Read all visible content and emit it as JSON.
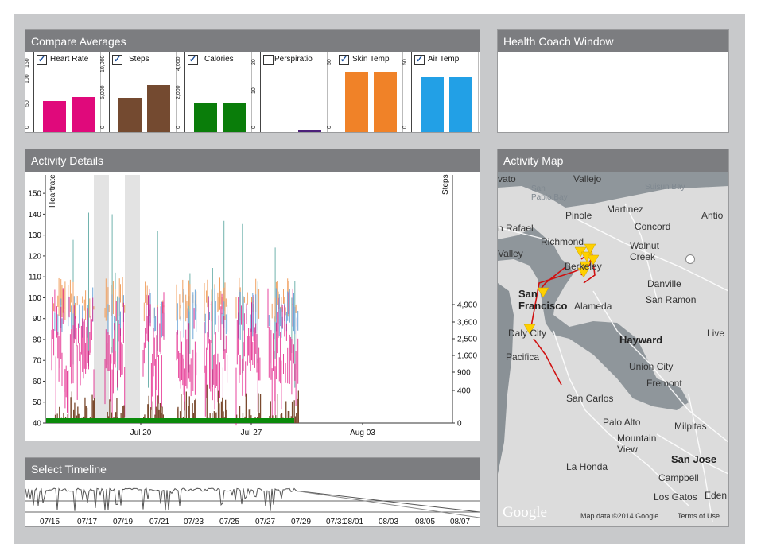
{
  "colors": {
    "heart_rate": "#e0097b",
    "steps": "#744a30",
    "calories": "#0a7d0a",
    "perspiration": "#4b1f7a",
    "skin_temp": "#f08228",
    "air_temp": "#22a0e6",
    "title_bar": "#7c7d80",
    "frame": "#c8c9cb"
  },
  "panels": {
    "compare": {
      "title": "Compare Averages"
    },
    "coach": {
      "title": "Health Coach Window"
    },
    "activity": {
      "title": "Activity Details"
    },
    "map": {
      "title": "Activity Map"
    },
    "timeline": {
      "title": "Select Timeline"
    }
  },
  "compare_averages": [
    {
      "label": "Heart Rate",
      "checked": true,
      "ticks": [
        "150",
        "100",
        "50",
        "0"
      ],
      "bars": [
        0.39,
        0.44
      ],
      "color": "#e0097b"
    },
    {
      "label": "Steps",
      "checked": true,
      "ticks": [
        "10,000",
        "5,000",
        "0"
      ],
      "bars": [
        0.43,
        0.59
      ],
      "color": "#744a30"
    },
    {
      "label": "Calories",
      "checked": true,
      "ticks": [
        "4,000",
        "2,000",
        "0"
      ],
      "bars": [
        0.37,
        0.36
      ],
      "color": "#0a7d0a"
    },
    {
      "label": "Perspiratio",
      "checked": false,
      "ticks": [
        "20",
        "10",
        "0"
      ],
      "bars": [
        0.0,
        0.03
      ],
      "color": "#4b1f7a"
    },
    {
      "label": "Skin Temp",
      "checked": true,
      "ticks": [
        "50",
        "0"
      ],
      "bars": [
        0.76,
        0.76
      ],
      "color": "#f08228"
    },
    {
      "label": "Air Temp",
      "checked": true,
      "ticks": [
        "50",
        "0"
      ],
      "bars": [
        0.69,
        0.69
      ],
      "color": "#22a0e6"
    }
  ],
  "chart_data": {
    "type": "line",
    "ylabel": "Heartrate",
    "y2label": "Steps",
    "ylim": [
      40,
      155
    ],
    "y_ticks": [
      "150",
      "140",
      "130",
      "120",
      "110",
      "100",
      "90",
      "80",
      "70",
      "60",
      "50",
      "40"
    ],
    "y2_ticks": [
      "4,900",
      "3,600",
      "2,500",
      "1,600",
      "900",
      "400",
      "0"
    ],
    "x_ticks": [
      "Jul 20",
      "Jul 27",
      "Aug 03"
    ],
    "series": []
  },
  "timeline": {
    "ticks": [
      "07/15",
      "07/17",
      "07/19",
      "07/21",
      "07/23",
      "07/25",
      "07/27",
      "07/29",
      "07/31",
      "08/01",
      "08/03",
      "08/05",
      "08/07"
    ]
  },
  "map": {
    "labels": {
      "vallejo": "Vallejo",
      "san_pablo_bay": "San\nPablo Bay",
      "suisun_bay": "Suisun Bay",
      "pinole": "Pinole",
      "martinez": "Martinez",
      "antioch": "Antio",
      "san_rafael": "n Rafael",
      "concord": "Concord",
      "richmond": "Richmond",
      "walnut_creek": "Walnut\nCreek",
      "mill_valley": "Valley",
      "berkeley": "Berkeley",
      "danville": "Danville",
      "san_ramon": "San Ramon",
      "san_francisco": "San\nFrancisco",
      "alameda": "Alameda",
      "daly_city": "Daly City",
      "livermore": "Live",
      "hayward": "Hayward",
      "pacifica": "Pacifica",
      "union_city": "Union City",
      "fremont": "Fremont",
      "san_carlos": "San Carlos",
      "palo_alto": "Palo Alto",
      "milpitas": "Milpitas",
      "mountain_view": "Mountain\nView",
      "san_jose": "San Jose",
      "la_honda": "La Honda",
      "campbell": "Campbell",
      "los_gatos": "Los Gatos",
      "eden": "Eden",
      "vato": "vato"
    },
    "logo": "Google",
    "attribution": "Map data ©2014 Google",
    "terms": "Terms of Use"
  }
}
